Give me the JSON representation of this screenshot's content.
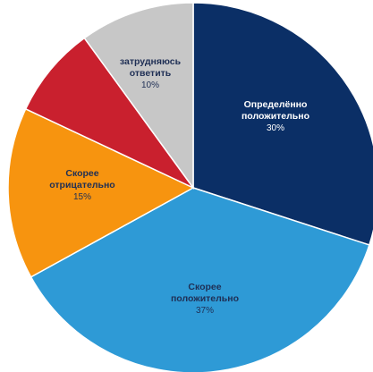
{
  "chart_data": {
    "type": "pie",
    "title": "",
    "slices": [
      {
        "label_lines": [
          "Определённо",
          "положительно"
        ],
        "value": 30,
        "value_label": "30%",
        "color": "#0b2f66",
        "text_color": "#ffffff"
      },
      {
        "label_lines": [
          "Скорее",
          "положительно"
        ],
        "value": 37,
        "value_label": "37%",
        "color": "#2e9ad6",
        "text_color": "#1f2f55"
      },
      {
        "label_lines": [
          "Скорее",
          "отрицательно"
        ],
        "value": 15,
        "value_label": "15%",
        "color": "#f7940f",
        "text_color": "#1f2f55"
      },
      {
        "label_lines": [],
        "value": 8,
        "value_label": "",
        "color": "#c9202e",
        "text_color": "#ffffff"
      },
      {
        "label_lines": [
          "затрудняюсь",
          "ответить"
        ],
        "value": 10,
        "value_label": "10%",
        "color": "#c7c7c7",
        "text_color": "#1f2f55"
      }
    ]
  }
}
